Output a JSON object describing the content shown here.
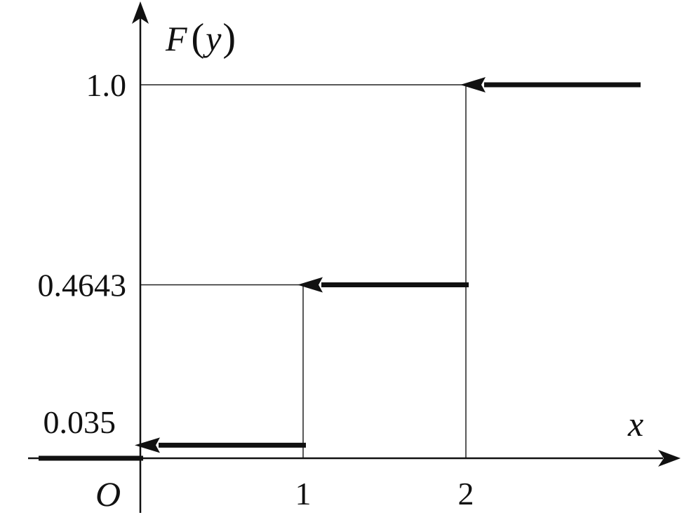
{
  "chart_data": {
    "type": "line",
    "xlabel": "x",
    "ylabel": {
      "func": "F",
      "open": "(",
      "var": "y",
      "close": ")"
    },
    "origin_label": "O",
    "x_ticks": [
      {
        "value": 1,
        "label": "1"
      },
      {
        "value": 2,
        "label": "2"
      }
    ],
    "y_ticks": [
      {
        "value": 0.035,
        "label": "0.035"
      },
      {
        "value": 0.4643,
        "label": "0.4643"
      },
      {
        "value": 1.0,
        "label": "1.0"
      }
    ],
    "steps": [
      {
        "x_from": null,
        "x_to": 0,
        "y": 0,
        "arrow": false
      },
      {
        "x_from": 0,
        "x_to": 1,
        "y": 0.035,
        "arrow": true
      },
      {
        "x_from": 1,
        "x_to": 2,
        "y": 0.4643,
        "arrow": true
      },
      {
        "x_from": 2,
        "x_to": null,
        "y": 1.0,
        "arrow": true
      }
    ],
    "grid": false,
    "legend": "none"
  }
}
